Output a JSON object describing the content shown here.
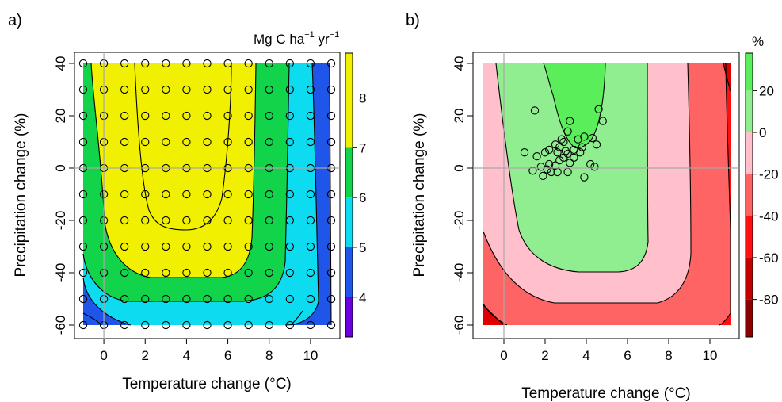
{
  "chart_data": [
    {
      "type": "heatmap",
      "panel_label": "a)",
      "xlabel": "Temperature change (°C)",
      "ylabel": "Precipitation change (%)",
      "xlim": [
        -1,
        11
      ],
      "ylim": [
        -60,
        40
      ],
      "x_ticks": [
        "0",
        "2",
        "4",
        "6",
        "8",
        "10"
      ],
      "y_ticks": [
        "-60",
        "-40",
        "-20",
        "0",
        "20",
        "40"
      ],
      "colorbar": {
        "unit_base": "Mg C ha",
        "unit_exp1": "−1",
        "unit_mid": " yr",
        "unit_exp2": "−1",
        "ticks": [
          "4",
          "5",
          "6",
          "7",
          "8"
        ],
        "levels": [
          {
            "from": 3.2,
            "to": 4,
            "color": "#6a00e0"
          },
          {
            "from": 4,
            "to": 5,
            "color": "#1f55e8"
          },
          {
            "from": 5,
            "to": 6,
            "color": "#0ddcf0"
          },
          {
            "from": 6,
            "to": 7,
            "color": "#12d44a"
          },
          {
            "from": 7,
            "to": 8.9,
            "color": "#f0f000"
          }
        ],
        "range": [
          3.2,
          8.9
        ]
      },
      "grid_points": {
        "x": [
          -1,
          0,
          1,
          2,
          3,
          4,
          5,
          6,
          7,
          8,
          9,
          10,
          11
        ],
        "y": [
          -60,
          -50,
          -40,
          -30,
          -20,
          -10,
          0,
          10,
          20,
          30,
          40
        ]
      }
    },
    {
      "type": "heatmap",
      "panel_label": "b)",
      "xlabel": "Temperature change (°C)",
      "ylabel": "Precipitation change (%)",
      "xlim": [
        -1,
        11
      ],
      "ylim": [
        -60,
        40
      ],
      "x_ticks": [
        "0",
        "2",
        "4",
        "6",
        "8",
        "10"
      ],
      "y_ticks": [
        "-60",
        "-40",
        "-20",
        "0",
        "20",
        "40"
      ],
      "colorbar": {
        "unit": "%",
        "ticks": [
          "-80",
          "-60",
          "-40",
          "-20",
          "0",
          "20"
        ],
        "levels": [
          {
            "from": -98,
            "to": -80,
            "color": "#8b0000"
          },
          {
            "from": -80,
            "to": -60,
            "color": "#c20000"
          },
          {
            "from": -60,
            "to": -40,
            "color": "#ff1010"
          },
          {
            "from": -40,
            "to": -20,
            "color": "#ff6464"
          },
          {
            "from": -20,
            "to": 0,
            "color": "#ffc0cb"
          },
          {
            "from": 0,
            "to": 20,
            "color": "#90ee90"
          },
          {
            "from": 20,
            "to": 38,
            "color": "#5aef5a"
          }
        ],
        "range": [
          -98,
          38
        ]
      },
      "scatter": [
        [
          1.5,
          22
        ],
        [
          4.6,
          22.5
        ],
        [
          4.8,
          18
        ],
        [
          3.2,
          18
        ],
        [
          4.5,
          9
        ],
        [
          4.3,
          11.5
        ],
        [
          3.9,
          12
        ],
        [
          3.6,
          11
        ],
        [
          3.1,
          14
        ],
        [
          2.9,
          10
        ],
        [
          2.8,
          11
        ],
        [
          3.0,
          6.5
        ],
        [
          3.1,
          5.5
        ],
        [
          2.7,
          8
        ],
        [
          2.6,
          6
        ],
        [
          2.5,
          9
        ],
        [
          2.2,
          7
        ],
        [
          2.0,
          6
        ],
        [
          1.6,
          4.5
        ],
        [
          1.0,
          6
        ],
        [
          2.9,
          4
        ],
        [
          2.7,
          3
        ],
        [
          2.5,
          1
        ],
        [
          3.4,
          4
        ],
        [
          3.8,
          8
        ],
        [
          3.7,
          6
        ],
        [
          3.4,
          7
        ],
        [
          2.2,
          1.5
        ],
        [
          2.1,
          -0.5
        ],
        [
          1.8,
          0.5
        ],
        [
          2.3,
          -1.5
        ],
        [
          1.9,
          -3
        ],
        [
          1.4,
          -1
        ],
        [
          2.6,
          -1.5
        ],
        [
          3.1,
          -1.5
        ],
        [
          3.9,
          -3.5
        ],
        [
          4.2,
          1.5
        ],
        [
          4.4,
          0.5
        ],
        [
          3.2,
          2
        ]
      ]
    }
  ]
}
